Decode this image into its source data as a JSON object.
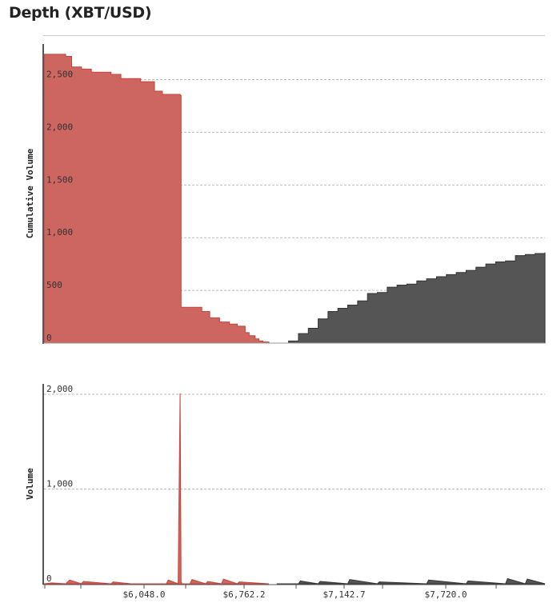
{
  "page": {
    "title": "Depth (XBT/USD)"
  },
  "colors": {
    "bid": "#c9433b",
    "bid_fill": "#cd6560",
    "ask": "#333333",
    "ask_fill": "#555555",
    "grid": "#bbbbbb",
    "axis": "#555555"
  },
  "chart_data": [
    {
      "type": "area",
      "name": "cumulative-depth",
      "ylabel": "Cumulative Volume",
      "ylim": [
        0,
        2800
      ],
      "yticks": [
        0,
        500,
        1000,
        1500,
        2000,
        2500
      ],
      "ytick_labels": [
        "0",
        "500",
        "1,000",
        "1,500",
        "2,000",
        "2,500"
      ],
      "xlim": [
        5760,
        8300
      ],
      "grid": true,
      "series": [
        {
          "side": "bid",
          "x": [
            5760,
            5870,
            5900,
            5950,
            6000,
            6100,
            6150,
            6250,
            6320,
            6360,
            6400,
            6450,
            6455,
            6500,
            6560,
            6600,
            6650,
            6700,
            6740,
            6780,
            6800,
            6830,
            6850,
            6870,
            6900
          ],
          "y": [
            2740,
            2720,
            2620,
            2600,
            2570,
            2550,
            2510,
            2480,
            2390,
            2360,
            2360,
            2350,
            340,
            340,
            300,
            240,
            200,
            180,
            160,
            100,
            70,
            40,
            20,
            10,
            0
          ]
        },
        {
          "side": "ask",
          "x": [
            6940,
            7000,
            7050,
            7100,
            7150,
            7200,
            7250,
            7300,
            7350,
            7400,
            7450,
            7500,
            7550,
            7600,
            7650,
            7700,
            7750,
            7800,
            7850,
            7900,
            7950,
            8000,
            8050,
            8100,
            8150,
            8200,
            8250,
            8300
          ],
          "y": [
            0,
            20,
            90,
            140,
            230,
            300,
            330,
            360,
            400,
            470,
            480,
            530,
            550,
            560,
            590,
            610,
            630,
            650,
            670,
            690,
            720,
            750,
            770,
            780,
            830,
            840,
            850,
            860
          ]
        }
      ]
    },
    {
      "type": "line",
      "name": "volume",
      "ylabel": "Volume",
      "ylim": [
        0,
        2100
      ],
      "yticks": [
        0,
        1000,
        2000
      ],
      "ytick_labels": [
        "0",
        "1,000",
        "2,000"
      ],
      "xlim": [
        5760,
        8300
      ],
      "xtick_labels": [
        "$6,048.0",
        "$6,762.2",
        "$7,142.7",
        "$7,720.0"
      ],
      "grid": true,
      "series": [
        {
          "side": "bid",
          "x": [
            5760,
            5800,
            5870,
            5890,
            5950,
            5960,
            6100,
            6110,
            6200,
            6380,
            6390,
            6440,
            6450,
            6455,
            6460,
            6500,
            6510,
            6580,
            6590,
            6660,
            6670,
            6740,
            6750,
            6900
          ],
          "y": [
            0,
            10,
            0,
            40,
            0,
            25,
            0,
            20,
            0,
            0,
            40,
            0,
            2010,
            20,
            0,
            0,
            45,
            0,
            25,
            0,
            50,
            0,
            20,
            0
          ]
        },
        {
          "side": "ask",
          "x": [
            6940,
            7050,
            7060,
            7150,
            7160,
            7300,
            7310,
            7450,
            7460,
            7700,
            7710,
            7900,
            7910,
            8100,
            8110,
            8200,
            8210,
            8300
          ],
          "y": [
            0,
            0,
            30,
            0,
            25,
            0,
            45,
            0,
            20,
            0,
            40,
            0,
            30,
            0,
            55,
            0,
            50,
            0
          ]
        }
      ]
    }
  ]
}
